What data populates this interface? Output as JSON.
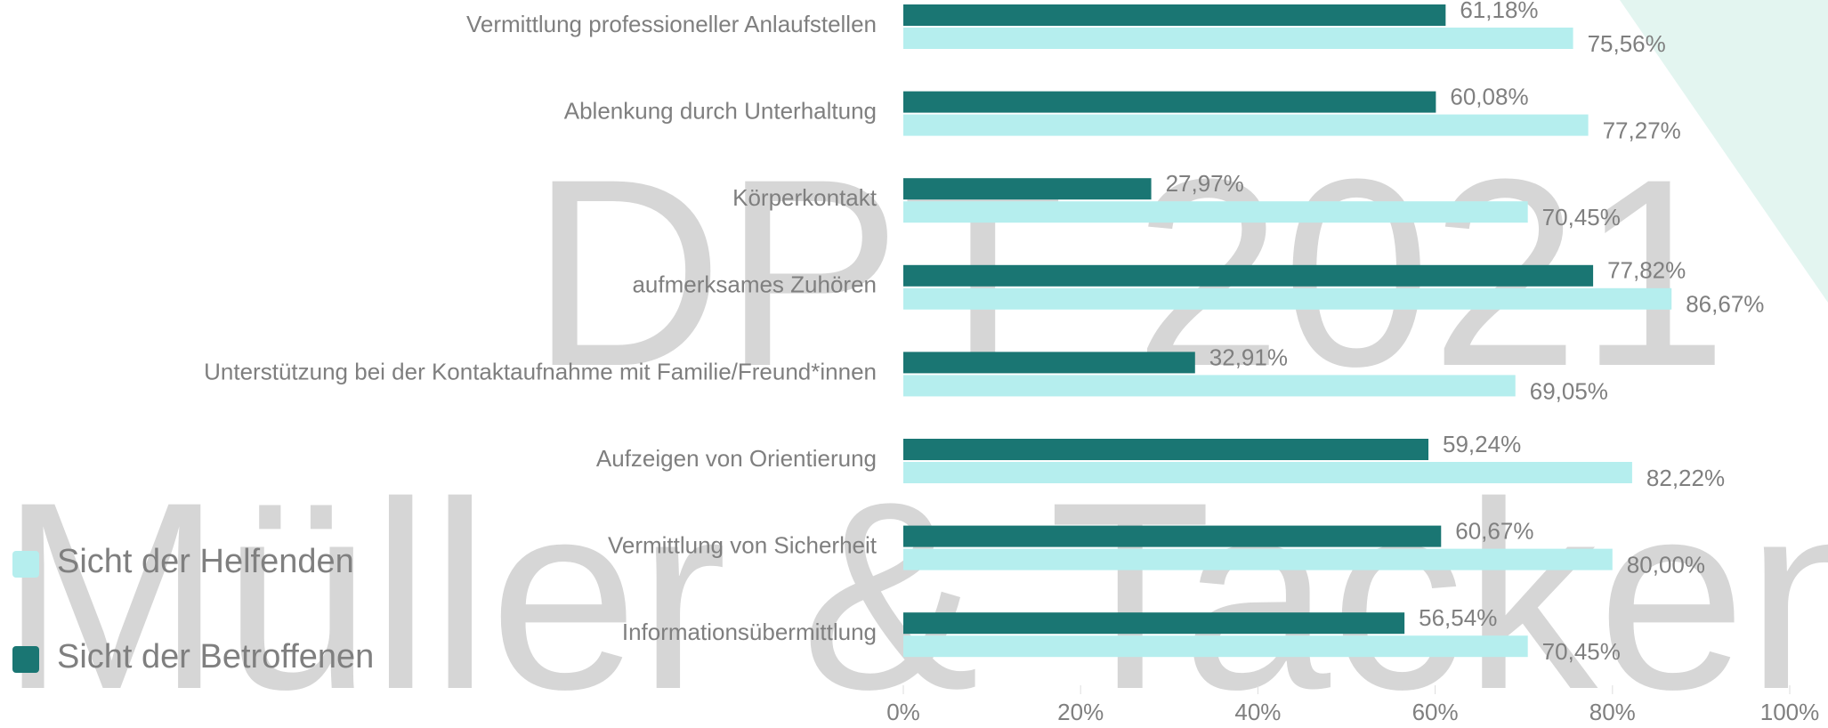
{
  "chart_data": {
    "type": "hbar",
    "watermarks": [
      "DPT 2021",
      "Müller & Tackenberg"
    ],
    "categories": [
      "Vermittlung professioneller Anlaufstellen",
      "Ablenkung durch Unterhaltung",
      "Körperkontakt",
      "aufmerksames Zuhören",
      "Unterstützung bei der Kontaktaufnahme mit Familie/Freund*innen",
      "Aufzeigen von Orientierung",
      "Vermittlung von Sicherheit",
      "Informationsübermittlung"
    ],
    "series": [
      {
        "name": "Sicht der Helfenden",
        "color": "#b5eeee",
        "values": [
          75.56,
          77.27,
          70.45,
          86.67,
          69.05,
          82.22,
          80.0,
          70.45
        ],
        "value_labels": [
          "75,56%",
          "77,27%",
          "70,45%",
          "86,67%",
          "69,05%",
          "82,22%",
          "80,00%",
          "70,45%"
        ]
      },
      {
        "name": "Sicht der Betroffenen",
        "color": "#1a7673",
        "values": [
          61.18,
          60.08,
          27.97,
          77.82,
          32.91,
          59.24,
          60.67,
          56.54
        ],
        "value_labels": [
          "61,18%",
          "60,08%",
          "27,97%",
          "77,82%",
          "32,91%",
          "59,24%",
          "60,67%",
          "56,54%"
        ]
      }
    ],
    "xlim": [
      0,
      100
    ],
    "xticks": [
      {
        "value": 0,
        "label": "0%"
      },
      {
        "value": 20,
        "label": "20%"
      },
      {
        "value": 40,
        "label": "40%"
      },
      {
        "value": 60,
        "label": "60%"
      },
      {
        "value": 80,
        "label": "80%"
      },
      {
        "value": 100,
        "label": "100%"
      }
    ],
    "legend": "left"
  }
}
